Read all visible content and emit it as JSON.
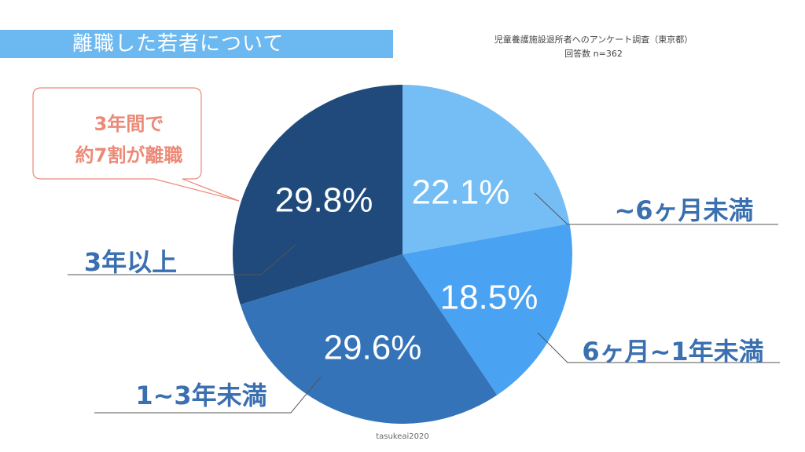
{
  "header": {
    "title": "離職した若者について",
    "source": "児童養護施設退所者へのアンケート調査（東京都）",
    "respondents": "回答数 n=362"
  },
  "callout": {
    "line1": "3年間で",
    "line2": "約7割が離職"
  },
  "footer": "tasukeai2020",
  "colors": {
    "title_bar": "#6cb8f0",
    "callout": "#ec8a78",
    "label_text": "#3a6fb0"
  },
  "chart_data": {
    "type": "pie",
    "start": "12 o'clock, clockwise",
    "slices": [
      {
        "label": "~6ヶ月未満",
        "value": 22.1,
        "value_label": "22.1%",
        "color": "#74bdf5"
      },
      {
        "label": "6ヶ月~1年未満",
        "value": 18.5,
        "value_label": "18.5%",
        "color": "#4aa2f2"
      },
      {
        "label": "1~3年未満",
        "value": 29.6,
        "value_label": "29.6%",
        "color": "#3573b8"
      },
      {
        "label": "3年以上",
        "value": 29.8,
        "value_label": "29.8%",
        "color": "#1f4a7b"
      }
    ]
  }
}
